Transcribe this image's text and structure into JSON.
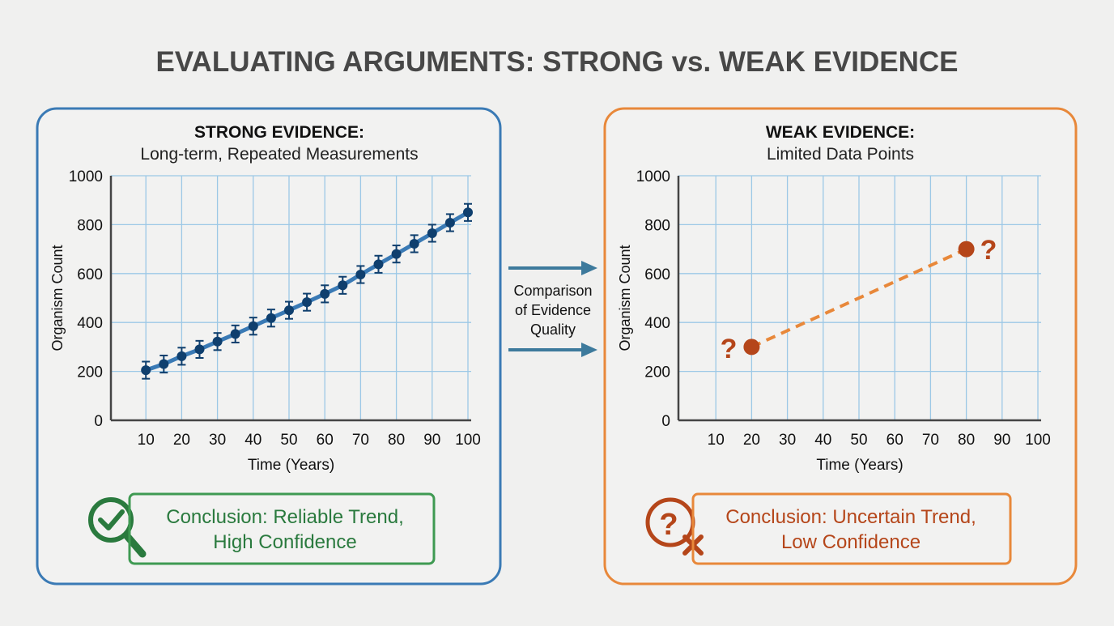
{
  "title": "EVALUATING ARGUMENTS: STRONG vs. WEAK EVIDENCE",
  "colors": {
    "strong": "#3a7ab5",
    "strong_marker": "#0f3f6e",
    "weak": "#e8883a",
    "weak_marker": "#b5461a",
    "good": "#2e8b45",
    "bad": "#b5461a",
    "grid": "#9cc8e6"
  },
  "middle": {
    "lines": [
      "Comparison",
      "of Evidence",
      "Quality"
    ],
    "icon": "right-arrow-icon"
  },
  "strong_panel": {
    "heading": "STRONG EVIDENCE:",
    "subheading": "Long-term, Repeated Measurements",
    "conclusion": [
      "Conclusion: Reliable Trend,",
      "High Confidence"
    ],
    "icon": "magnifier-check-icon"
  },
  "weak_panel": {
    "heading": "WEAK EVIDENCE:",
    "subheading": "Limited Data Points",
    "conclusion": [
      "Conclusion: Uncertain Trend,",
      "Low Confidence"
    ],
    "icon": "question-x-icon",
    "annotation": "?"
  },
  "chart_data": [
    {
      "type": "line",
      "xlabel": "Time (Years)",
      "ylabel": "Organism Count",
      "xlim": [
        0,
        100
      ],
      "ylim": [
        0,
        1000
      ],
      "xticks": [
        10,
        20,
        30,
        40,
        50,
        60,
        70,
        80,
        90,
        100
      ],
      "yticks": [
        0,
        200,
        400,
        600,
        800,
        1000
      ],
      "grid": true,
      "error_bars": true,
      "series": [
        {
          "x": [
            10,
            15,
            20,
            25,
            30,
            35,
            40,
            45,
            50,
            55,
            60,
            65,
            70,
            75,
            80,
            85,
            90,
            95,
            100
          ],
          "y": [
            205,
            230,
            262,
            290,
            322,
            353,
            385,
            418,
            450,
            483,
            517,
            552,
            596,
            638,
            680,
            722,
            765,
            808,
            850
          ],
          "error": 35
        }
      ]
    },
    {
      "type": "scatter",
      "xlabel": "Time (Years)",
      "ylabel": "Organism Count",
      "xlim": [
        0,
        100
      ],
      "ylim": [
        0,
        1000
      ],
      "xticks": [
        10,
        20,
        30,
        40,
        50,
        60,
        70,
        80,
        90,
        100
      ],
      "yticks": [
        0,
        200,
        400,
        600,
        800,
        1000
      ],
      "grid": true,
      "trend_line": "dashed",
      "series": [
        {
          "x": [
            20,
            80
          ],
          "y": [
            300,
            700
          ]
        }
      ]
    }
  ]
}
